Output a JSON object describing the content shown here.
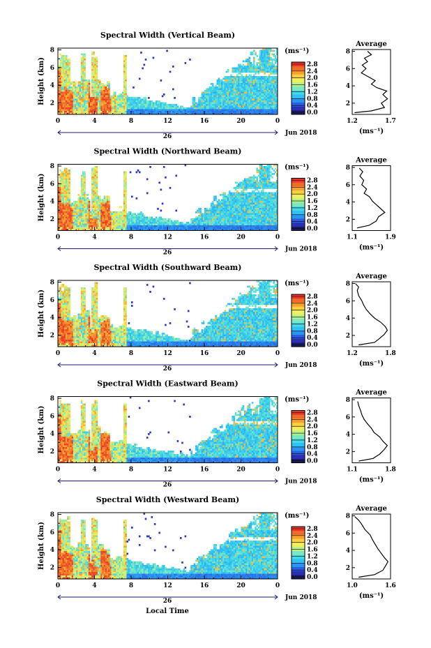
{
  "figure": {
    "xlabel": "Local Time",
    "ylabel": "Height (km)",
    "date_label": "26",
    "month_label": "Jun 2018",
    "unit_label": "(ms⁻¹)",
    "avg_title": "Average",
    "avg_xlabel": "(ms⁻¹)"
  },
  "colorbar": {
    "ticks": [
      "0.0",
      "0.4",
      "0.8",
      "1.2",
      "1.6",
      "2.0",
      "2.4",
      "2.8"
    ],
    "bands": [
      "#1a1a5c",
      "#2a2fb5",
      "#2c5fe0",
      "#2a95f0",
      "#30c0f5",
      "#45d8e5",
      "#7ce8c0",
      "#b8f08a",
      "#eef060",
      "#f8d040",
      "#f8a030",
      "#f06a28",
      "#e8342a"
    ]
  },
  "chart_data": [
    {
      "type": "heatmap",
      "title": "Spectral Width (Vertical Beam)",
      "x_ticks": [
        "0",
        "4",
        "8",
        "12",
        "16",
        "20",
        "0"
      ],
      "xlim": [
        0,
        24
      ],
      "y_ticks": [
        "2",
        "4",
        "6",
        "8"
      ],
      "ylim": [
        0.7,
        8.2
      ],
      "colorbar_range": [
        0.0,
        2.8
      ],
      "average": {
        "title": "Average",
        "x_ticks": [
          "1.2",
          "1.7"
        ],
        "xlim": [
          1.2,
          1.7
        ],
        "ylim": [
          0.7,
          8.2
        ],
        "profile": [
          [
            1.23,
            0.9
          ],
          [
            1.45,
            1.1
          ],
          [
            1.62,
            1.5
          ],
          [
            1.58,
            2.0
          ],
          [
            1.66,
            2.5
          ],
          [
            1.6,
            3.0
          ],
          [
            1.65,
            3.4
          ],
          [
            1.52,
            3.8
          ],
          [
            1.45,
            4.2
          ],
          [
            1.5,
            4.6
          ],
          [
            1.4,
            5.1
          ],
          [
            1.32,
            5.5
          ],
          [
            1.38,
            6.0
          ],
          [
            1.33,
            6.4
          ],
          [
            1.4,
            6.8
          ],
          [
            1.36,
            7.2
          ],
          [
            1.45,
            7.6
          ],
          [
            1.4,
            8.0
          ]
        ]
      }
    },
    {
      "type": "heatmap",
      "title": "Spectral Width (Northward Beam)",
      "x_ticks": [
        "0",
        "4",
        "8",
        "12",
        "16",
        "20",
        "0"
      ],
      "xlim": [
        0,
        24
      ],
      "y_ticks": [
        "2",
        "4",
        "6",
        "8"
      ],
      "ylim": [
        0.7,
        8.2
      ],
      "colorbar_range": [
        0.0,
        2.8
      ],
      "average": {
        "title": "Average",
        "x_ticks": [
          "1.1",
          "1.9"
        ],
        "xlim": [
          1.1,
          1.9
        ],
        "ylim": [
          0.7,
          8.2
        ],
        "profile": [
          [
            1.2,
            1.0
          ],
          [
            1.45,
            1.3
          ],
          [
            1.6,
            1.8
          ],
          [
            1.65,
            2.3
          ],
          [
            1.78,
            2.8
          ],
          [
            1.7,
            3.2
          ],
          [
            1.6,
            3.7
          ],
          [
            1.52,
            4.1
          ],
          [
            1.46,
            4.6
          ],
          [
            1.35,
            5.0
          ],
          [
            1.4,
            5.5
          ],
          [
            1.3,
            6.0
          ],
          [
            1.34,
            6.5
          ],
          [
            1.26,
            7.0
          ],
          [
            1.32,
            7.5
          ],
          [
            1.25,
            7.9
          ]
        ]
      }
    },
    {
      "type": "heatmap",
      "title": "Spectral Width (Southward Beam)",
      "x_ticks": [
        "0",
        "4",
        "8",
        "12",
        "16",
        "20",
        "0"
      ],
      "xlim": [
        0,
        24
      ],
      "y_ticks": [
        "2",
        "4",
        "6",
        "8"
      ],
      "ylim": [
        0.7,
        8.2
      ],
      "colorbar_range": [
        0.0,
        2.8
      ],
      "average": {
        "title": "Average",
        "x_ticks": [
          "1.2",
          "1.8"
        ],
        "xlim": [
          1.2,
          1.8
        ],
        "ylim": [
          0.7,
          8.2
        ],
        "profile": [
          [
            1.3,
            0.9
          ],
          [
            1.55,
            1.2
          ],
          [
            1.62,
            1.6
          ],
          [
            1.7,
            2.1
          ],
          [
            1.75,
            2.6
          ],
          [
            1.72,
            3.0
          ],
          [
            1.65,
            3.5
          ],
          [
            1.55,
            4.0
          ],
          [
            1.48,
            4.5
          ],
          [
            1.42,
            5.0
          ],
          [
            1.38,
            5.5
          ],
          [
            1.35,
            6.0
          ],
          [
            1.3,
            6.6
          ],
          [
            1.28,
            7.2
          ],
          [
            1.3,
            7.6
          ],
          [
            1.25,
            8.0
          ]
        ]
      }
    },
    {
      "type": "heatmap",
      "title": "Spectral Width (Eastward Beam)",
      "x_ticks": [
        "0",
        "4",
        "8",
        "12",
        "16",
        "20",
        "0"
      ],
      "xlim": [
        0,
        24
      ],
      "y_ticks": [
        "2",
        "4",
        "6",
        "8"
      ],
      "ylim": [
        0.7,
        8.2
      ],
      "colorbar_range": [
        0.0,
        2.8
      ],
      "average": {
        "title": "Average",
        "x_ticks": [
          "1.1",
          "1.8"
        ],
        "xlim": [
          1.1,
          1.8
        ],
        "ylim": [
          0.7,
          8.2
        ],
        "profile": [
          [
            1.22,
            0.9
          ],
          [
            1.48,
            1.2
          ],
          [
            1.6,
            1.7
          ],
          [
            1.68,
            2.2
          ],
          [
            1.74,
            2.7
          ],
          [
            1.66,
            3.2
          ],
          [
            1.6,
            3.7
          ],
          [
            1.5,
            4.2
          ],
          [
            1.45,
            4.7
          ],
          [
            1.38,
            5.2
          ],
          [
            1.32,
            5.7
          ],
          [
            1.28,
            6.2
          ],
          [
            1.25,
            6.8
          ],
          [
            1.22,
            7.3
          ],
          [
            1.2,
            7.8
          ]
        ]
      }
    },
    {
      "type": "heatmap",
      "title": "Spectral Width (Westward Beam)",
      "x_ticks": [
        "0",
        "4",
        "8",
        "12",
        "16",
        "20",
        "0"
      ],
      "xlim": [
        0,
        24
      ],
      "y_ticks": [
        "2",
        "4",
        "6",
        "8"
      ],
      "ylim": [
        0.7,
        8.2
      ],
      "colorbar_range": [
        0.0,
        2.8
      ],
      "average": {
        "title": "Average",
        "x_ticks": [
          "1.0",
          "1.6"
        ],
        "xlim": [
          1.0,
          1.6
        ],
        "ylim": [
          0.7,
          8.2
        ],
        "profile": [
          [
            1.1,
            0.9
          ],
          [
            1.35,
            1.2
          ],
          [
            1.48,
            1.7
          ],
          [
            1.52,
            2.2
          ],
          [
            1.56,
            2.7
          ],
          [
            1.5,
            3.2
          ],
          [
            1.45,
            3.7
          ],
          [
            1.4,
            4.2
          ],
          [
            1.36,
            4.7
          ],
          [
            1.32,
            5.2
          ],
          [
            1.28,
            5.8
          ],
          [
            1.2,
            6.4
          ],
          [
            1.15,
            7.0
          ],
          [
            1.1,
            7.5
          ],
          [
            1.04,
            7.9
          ]
        ]
      }
    }
  ]
}
